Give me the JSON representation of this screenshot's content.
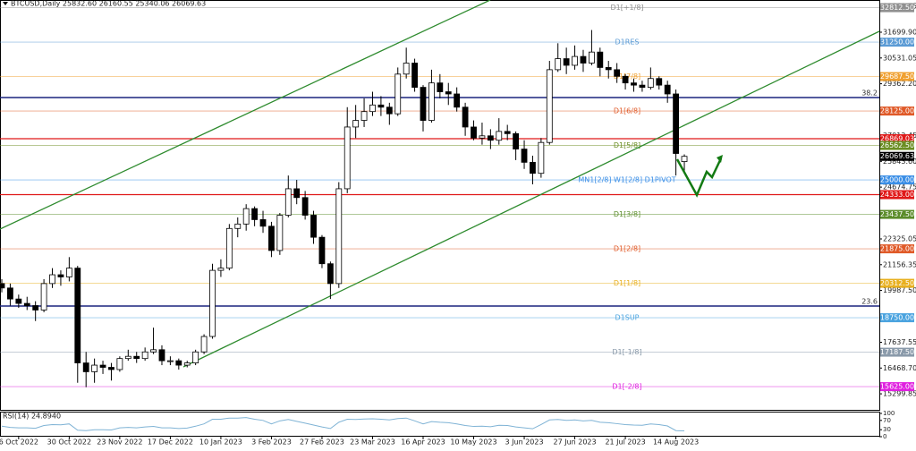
{
  "chart_data": {
    "type": "candlestick",
    "title": "BTCUSD,Daily 25832.60 26160.55 25340.06 26069.63",
    "categories": [
      null,
      null,
      "6 Oct 2022",
      null,
      null,
      null,
      null,
      null,
      "30 Oct 2022",
      null,
      null,
      null,
      null,
      null,
      "23 Nov 2022",
      null,
      null,
      null,
      null,
      null,
      "17 Dec 2022",
      null,
      null,
      null,
      null,
      null,
      "10 Jan 2023",
      null,
      null,
      null,
      null,
      null,
      "3 Feb 2023",
      null,
      null,
      null,
      null,
      null,
      "27 Feb 2023",
      null,
      null,
      null,
      null,
      null,
      "23 Mar 2023",
      null,
      null,
      null,
      null,
      null,
      "16 Apr 2023",
      null,
      null,
      null,
      null,
      null,
      "10 May 2023",
      null,
      null,
      null,
      null,
      null,
      "3 Jun 2023",
      null,
      null,
      null,
      null,
      null,
      "27 Jun 2023",
      null,
      null,
      null,
      null,
      null,
      "21 Jul 2023",
      null,
      null,
      null,
      null,
      null,
      "14 Aug 2023",
      null
    ],
    "ohlc": [
      [
        20300,
        20500,
        19900,
        20100
      ],
      [
        20100,
        20300,
        19300,
        19600
      ],
      [
        19600,
        19800,
        19200,
        19400
      ],
      [
        19400,
        19700,
        19100,
        19300
      ],
      [
        19300,
        19500,
        18600,
        19100
      ],
      [
        19100,
        20500,
        19000,
        20300
      ],
      [
        20300,
        21000,
        20100,
        20700
      ],
      [
        20700,
        20900,
        20200,
        20600
      ],
      [
        20600,
        21500,
        20400,
        21000
      ],
      [
        21000,
        21100,
        15800,
        16700
      ],
      [
        16700,
        17200,
        15600,
        16300
      ],
      [
        16300,
        16900,
        15800,
        16600
      ],
      [
        16600,
        16800,
        16200,
        16500
      ],
      [
        16500,
        16700,
        15900,
        16400
      ],
      [
        16400,
        17000,
        16300,
        16900
      ],
      [
        16900,
        17300,
        16800,
        17000
      ],
      [
        17000,
        17200,
        16700,
        16900
      ],
      [
        16900,
        17400,
        16800,
        17200
      ],
      [
        17200,
        18300,
        17100,
        17300
      ],
      [
        17300,
        17500,
        16600,
        16800
      ],
      [
        16800,
        17000,
        16600,
        16800
      ],
      [
        16800,
        16900,
        16400,
        16600
      ],
      [
        16600,
        16800,
        16500,
        16700
      ],
      [
        16700,
        17300,
        16600,
        17200
      ],
      [
        17200,
        18000,
        17100,
        17900
      ],
      [
        17900,
        21200,
        17800,
        20900
      ],
      [
        20900,
        21400,
        20600,
        21000
      ],
      [
        21000,
        23000,
        20900,
        22800
      ],
      [
        22800,
        23300,
        22400,
        23000
      ],
      [
        23000,
        23900,
        22700,
        23700
      ],
      [
        23700,
        23800,
        22900,
        23200
      ],
      [
        23200,
        23600,
        22600,
        22900
      ],
      [
        22900,
        23100,
        21500,
        21800
      ],
      [
        21800,
        23500,
        21600,
        23400
      ],
      [
        23400,
        25200,
        23300,
        24600
      ],
      [
        24600,
        25000,
        23900,
        24200
      ],
      [
        24200,
        24500,
        23200,
        23400
      ],
      [
        23400,
        23600,
        22100,
        22400
      ],
      [
        22400,
        22500,
        21000,
        21200
      ],
      [
        21200,
        21300,
        19600,
        20300
      ],
      [
        20300,
        24900,
        20100,
        24600
      ],
      [
        24600,
        28300,
        24400,
        27400
      ],
      [
        27400,
        28400,
        26900,
        27700
      ],
      [
        27700,
        28700,
        27400,
        28100
      ],
      [
        28100,
        29000,
        27900,
        28400
      ],
      [
        28400,
        28800,
        27900,
        28300
      ],
      [
        28300,
        28500,
        27500,
        28000
      ],
      [
        28000,
        30100,
        27900,
        29800
      ],
      [
        29800,
        31000,
        29600,
        30300
      ],
      [
        30300,
        30500,
        29000,
        29200
      ],
      [
        29200,
        29300,
        27200,
        27700
      ],
      [
        27700,
        30000,
        27600,
        29400
      ],
      [
        29400,
        29800,
        28700,
        29000
      ],
      [
        29000,
        29400,
        28400,
        28900
      ],
      [
        28900,
        29200,
        28100,
        28300
      ],
      [
        28300,
        28500,
        27000,
        27400
      ],
      [
        27400,
        27700,
        26800,
        26900
      ],
      [
        26900,
        27600,
        26600,
        27000
      ],
      [
        27000,
        27300,
        26400,
        26800
      ],
      [
        26800,
        27800,
        26600,
        27200
      ],
      [
        27200,
        27500,
        26800,
        27100
      ],
      [
        27100,
        27200,
        25900,
        26400
      ],
      [
        26400,
        26800,
        25500,
        25800
      ],
      [
        25800,
        26100,
        24800,
        25300
      ],
      [
        25300,
        26900,
        25100,
        26700
      ],
      [
        26700,
        30400,
        26600,
        30000
      ],
      [
        30000,
        31200,
        29900,
        30500
      ],
      [
        30500,
        31000,
        29800,
        30200
      ],
      [
        30200,
        31100,
        30000,
        30600
      ],
      [
        30600,
        30900,
        29900,
        30300
      ],
      [
        30300,
        31800,
        30200,
        30800
      ],
      [
        30800,
        31000,
        29700,
        30100
      ],
      [
        30100,
        30400,
        29600,
        30000
      ],
      [
        30000,
        30300,
        29400,
        29700
      ],
      [
        29700,
        29800,
        29100,
        29400
      ],
      [
        29400,
        29600,
        29000,
        29300
      ],
      [
        29300,
        29500,
        29000,
        29200
      ],
      [
        29200,
        30100,
        29100,
        29600
      ],
      [
        29600,
        29700,
        29100,
        29300
      ],
      [
        29300,
        29500,
        28500,
        28900
      ],
      [
        28900,
        29100,
        25200,
        26200
      ],
      [
        25832.6,
        26160.55,
        25340.06,
        26069.63
      ]
    ],
    "up_color": "#ffffff",
    "down_color": "#000000",
    "ylim": [
      14573,
      33161
    ],
    "yticks": [
      {
        "value": 32869.75,
        "label": "32869.75"
      },
      {
        "value": 31699.9,
        "label": "31699.90"
      },
      30531.05,
      {
        "value": 29362.2,
        "label": "29362.20"
      },
      27012.45,
      {
        "value": 25843.6,
        "label": "25843.60"
      },
      24674.75,
      22325.05,
      21156.35,
      {
        "value": 19987.5,
        "label": "19987.50"
      },
      17637.55,
      {
        "value": 16468.7,
        "label": "16468.70"
      },
      15299.85
    ],
    "levels": [
      {
        "name": "D1[+1/8]",
        "price": {
          "value": 32812.5,
          "label": "32812.50"
        },
        "color": "#909090"
      },
      {
        "name": "D1RES",
        "price": {
          "value": 31250,
          "label": "31250.00"
        },
        "color": "#5b9bd5"
      },
      {
        "name": "D1[7/8]",
        "price": {
          "value": 29687.5,
          "label": "29687.50"
        },
        "color": "#f0a030"
      },
      {
        "name": "D1[6/8]",
        "price": {
          "value": 28125,
          "label": "28125.00"
        },
        "color": "#e05a28"
      },
      {
        "price": {
          "value": 26869.03,
          "label": "26869.03"
        },
        "color": "#e01818"
      },
      {
        "name": "D1[5/8]",
        "price": {
          "value": 26562.5,
          "label": "26562.50"
        },
        "color": "#6b8e23"
      },
      {
        "name": "MN1[2/8] W1[2/8] D1PIVOT",
        "price": {
          "value": 25000,
          "label": "25000.00"
        },
        "color": "#3a8ee6"
      },
      {
        "price": {
          "value": 24333,
          "label": "24333.00"
        },
        "color": "#e01818"
      },
      {
        "name": "D1[3/8]",
        "price": {
          "value": 23437.5,
          "label": "23437.50"
        },
        "color": "#5b8c2a"
      },
      {
        "name": "D1[2/8]",
        "price": {
          "value": 21875,
          "label": "21875.00"
        },
        "color": "#e05a28"
      },
      {
        "name": "D1[1/8]",
        "price": {
          "value": 20312.5,
          "label": "20312.50"
        },
        "color": "#e8b020"
      },
      {
        "name": "D1SUP",
        "price": {
          "value": 18750,
          "label": "18750.00"
        },
        "color": "#4aa3df"
      },
      {
        "name": "D1[-1/8]",
        "price": {
          "value": 17187.5,
          "label": "17187.50"
        },
        "color": "#8a9aaa"
      },
      {
        "name": "D1[-2/8]",
        "price": {
          "value": 15625,
          "label": "15625.00"
        },
        "color": "#e020e0"
      }
    ],
    "last_price": {
      "value": 26069.63,
      "label": "26069.63",
      "color": "#000000"
    },
    "fib_levels": [
      {
        "name": "38.2",
        "value": 28738,
        "color": "#1a237e"
      },
      {
        "name": "23.6",
        "value": 19282,
        "color": "#1a237e"
      }
    ],
    "rsi": {
      "title": "RSI(14) 24.8940",
      "color": "#7fb3d5",
      "ylim": [
        0,
        100
      ],
      "yticks": [
        0,
        30,
        70,
        100
      ],
      "values": [
        45,
        40,
        38,
        38,
        36,
        48,
        52,
        51,
        55,
        28,
        26,
        30,
        30,
        29,
        38,
        40,
        38,
        42,
        44,
        38,
        38,
        35,
        37,
        45,
        55,
        75,
        75,
        80,
        80,
        82,
        75,
        70,
        55,
        68,
        74,
        66,
        58,
        50,
        42,
        35,
        62,
        75,
        74,
        76,
        77,
        75,
        72,
        78,
        80,
        68,
        55,
        65,
        62,
        60,
        55,
        48,
        44,
        45,
        43,
        49,
        48,
        42,
        38,
        34,
        52,
        72,
        74,
        70,
        72,
        68,
        70,
        62,
        60,
        56,
        52,
        50,
        49,
        55,
        52,
        46,
        26,
        24.894
      ]
    }
  }
}
